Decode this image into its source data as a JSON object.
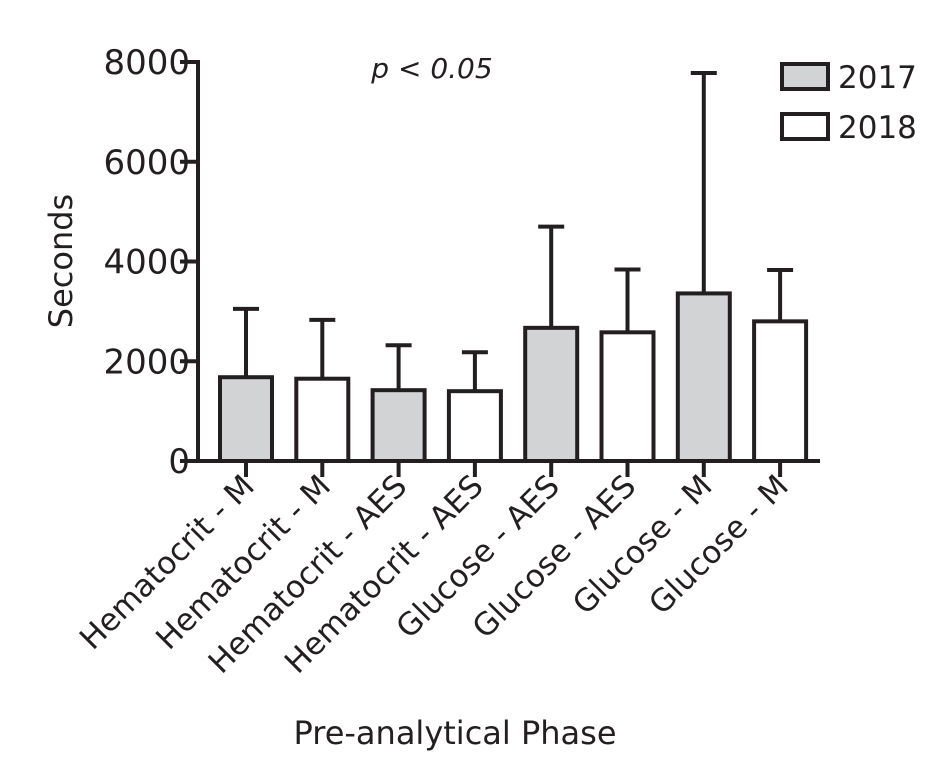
{
  "chart_data": {
    "type": "bar",
    "xlabel": "Pre-analytical Phase",
    "ylabel": "Seconds",
    "ylim": [
      0,
      8000
    ],
    "yticks": [
      0,
      2000,
      4000,
      6000,
      8000
    ],
    "grid": false,
    "annotation": "p < 0.05",
    "legend_position": "top-right",
    "legend": [
      {
        "name": "2017",
        "color": "#d1d3d4"
      },
      {
        "name": "2018",
        "color": "#ffffff"
      }
    ],
    "categories": [
      "Hematocrit - M",
      "Hematocrit - M",
      "Hematocrit - AES",
      "Hematocrit - AES",
      "Glucose - AES",
      "Glucose - AES",
      "Glucose - M",
      "Glucose - M"
    ],
    "bars": [
      {
        "category": "Hematocrit - M",
        "year": "2017",
        "value": 1680,
        "error_upper": 3050
      },
      {
        "category": "Hematocrit - M",
        "year": "2018",
        "value": 1650,
        "error_upper": 2830
      },
      {
        "category": "Hematocrit - AES",
        "year": "2017",
        "value": 1420,
        "error_upper": 2320
      },
      {
        "category": "Hematocrit - AES",
        "year": "2018",
        "value": 1400,
        "error_upper": 2180
      },
      {
        "category": "Glucose - AES",
        "year": "2017",
        "value": 2670,
        "error_upper": 4700
      },
      {
        "category": "Glucose - AES",
        "year": "2018",
        "value": 2580,
        "error_upper": 3840
      },
      {
        "category": "Glucose - M",
        "year": "2017",
        "value": 3360,
        "error_upper": 7780
      },
      {
        "category": "Glucose - M",
        "year": "2018",
        "value": 2800,
        "error_upper": 3830
      }
    ]
  }
}
